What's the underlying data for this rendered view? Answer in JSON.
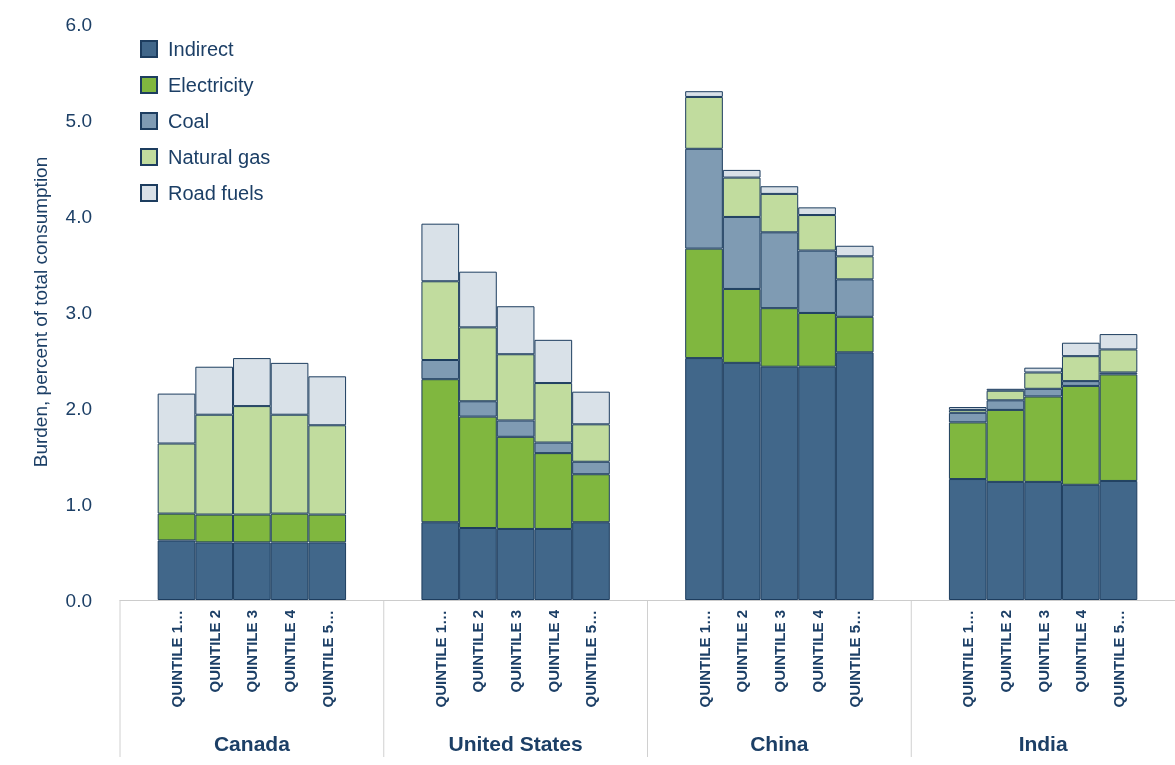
{
  "chart_data": {
    "type": "bar",
    "stacked": true,
    "ylabel": "Burden, percent of total consumption",
    "categories": [
      "QUINTILE 1…",
      "QUINTILE 2",
      "QUINTILE 3",
      "QUINTILE 4",
      "QUINTILE 5…",
      "QUINTILE 1…",
      "QUINTILE 2",
      "QUINTILE 3",
      "QUINTILE 4",
      "QUINTILE 5…",
      "QUINTILE 1…",
      "QUINTILE 2",
      "QUINTILE 3",
      "QUINTILE 4",
      "QUINTILE 5…",
      "QUINTILE 1…",
      "QUINTILE 2",
      "QUINTILE 3",
      "QUINTILE 4",
      "QUINTILE 5…"
    ],
    "annotations": [
      "Canada",
      "United States",
      "China",
      "India"
    ],
    "series": [
      {
        "name": "Indirect",
        "color": "#41678a",
        "values": [
          0.62,
          0.6,
          0.6,
          0.6,
          0.6,
          0.81,
          0.75,
          0.74,
          0.74,
          0.81,
          2.52,
          2.47,
          2.43,
          2.43,
          2.58,
          1.26,
          1.23,
          1.23,
          1.2,
          1.24
        ]
      },
      {
        "name": "Electricity",
        "color": "#80b73f",
        "values": [
          0.28,
          0.29,
          0.29,
          0.3,
          0.29,
          1.49,
          1.16,
          0.96,
          0.79,
          0.5,
          1.14,
          0.77,
          0.61,
          0.56,
          0.37,
          0.59,
          0.75,
          0.89,
          1.03,
          1.11
        ]
      },
      {
        "name": "Coal",
        "color": "#7f9bb3",
        "values": [
          null,
          null,
          null,
          null,
          null,
          0.2,
          0.16,
          0.17,
          0.11,
          0.13,
          1.04,
          0.75,
          0.79,
          0.65,
          0.39,
          0.1,
          0.1,
          0.08,
          0.05,
          0.02
        ]
      },
      {
        "name": "Natural gas",
        "color": "#c1dc9e",
        "values": [
          0.73,
          1.04,
          1.13,
          1.03,
          0.93,
          0.82,
          0.77,
          0.69,
          0.62,
          0.39,
          0.54,
          0.41,
          0.4,
          0.37,
          0.24,
          0.03,
          0.1,
          0.17,
          0.26,
          0.24
        ]
      },
      {
        "name": "Road fuels",
        "color": "#d9e1e8",
        "values": [
          0.52,
          0.5,
          0.5,
          0.54,
          0.51,
          0.6,
          0.58,
          0.5,
          0.45,
          0.34,
          0.06,
          0.08,
          0.08,
          0.08,
          0.11,
          0.03,
          0.02,
          0.05,
          0.14,
          0.16
        ]
      }
    ],
    "ylim": [
      0,
      6
    ],
    "yticks": [
      {
        "value": 0,
        "label": "0.0"
      },
      {
        "value": 1,
        "label": "1.0"
      },
      {
        "value": 2,
        "label": "2.0"
      },
      {
        "value": 3,
        "label": "3.0"
      },
      {
        "value": 4,
        "label": "4.0"
      },
      {
        "value": 5,
        "label": "5.0"
      },
      {
        "value": 6,
        "label": "6.0"
      }
    ],
    "grid": false,
    "legend": "top left"
  }
}
